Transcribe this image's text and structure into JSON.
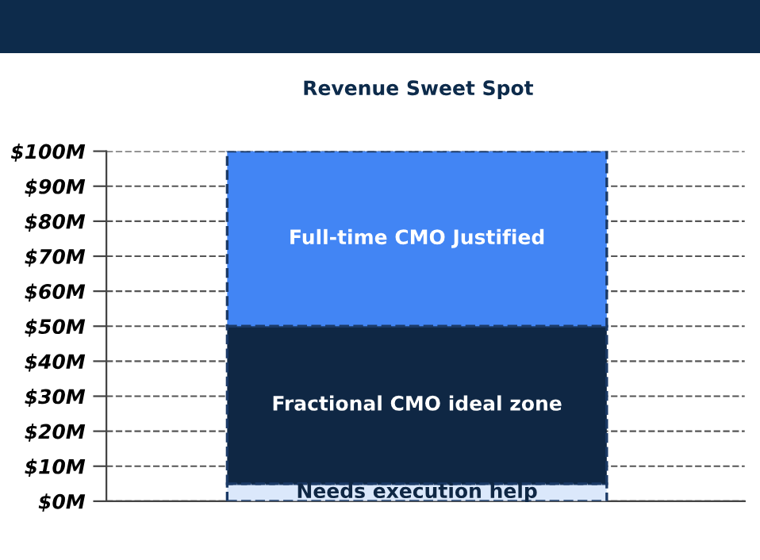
{
  "chart_data": {
    "type": "bar",
    "title": "Revenue Sweet Spot",
    "categories": [
      null
    ],
    "stacked": true,
    "grid": "y",
    "series": [
      {
        "name": "Needs execution help",
        "color": "#dbe8fb",
        "values": [
          5
        ]
      },
      {
        "name": "Fractional CMO ideal zone",
        "color": "#0f2744",
        "values": [
          45
        ]
      },
      {
        "name": "Full-time CMO Justified",
        "color": "#4285f4",
        "values": [
          50
        ]
      }
    ],
    "ylim": [
      0,
      100
    ],
    "yticks": [
      {
        "value": 0,
        "label": "$0M"
      },
      {
        "value": 10,
        "label": "$10M"
      },
      {
        "value": 20,
        "label": "$20M"
      },
      {
        "value": 30,
        "label": "$30M"
      },
      {
        "value": 40,
        "label": "$40M"
      },
      {
        "value": 50,
        "label": "$50M"
      },
      {
        "value": 60,
        "label": "$60M"
      },
      {
        "value": 70,
        "label": "$70M"
      },
      {
        "value": 80,
        "label": "$80M"
      },
      {
        "value": 90,
        "label": "$90M"
      },
      {
        "value": 100,
        "label": "$100M"
      }
    ]
  }
}
